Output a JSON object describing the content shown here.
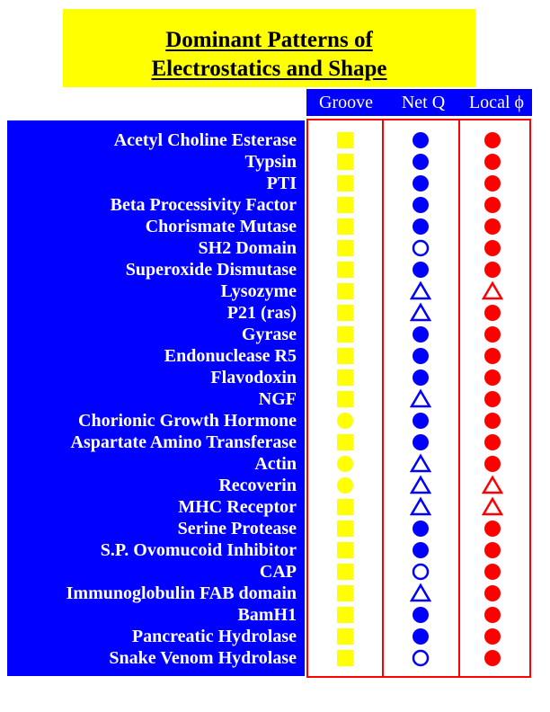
{
  "title": {
    "line1": "Dominant Patterns of",
    "line2": "Electrostatics and Shape"
  },
  "columns": [
    "Groove",
    "Net Q",
    "Local ϕ"
  ],
  "colors": {
    "blue": "#0000ff",
    "yellow": "#ffff00",
    "red": "#ff0000",
    "border_red": "#ff0000"
  },
  "rows": [
    {
      "name": "Acetyl Choline Esterase",
      "groove": "square",
      "netq": "filled-circle",
      "local": "filled-circle"
    },
    {
      "name": "Typsin",
      "groove": "square",
      "netq": "filled-circle",
      "local": "filled-circle"
    },
    {
      "name": "PTI",
      "groove": "square",
      "netq": "filled-circle",
      "local": "filled-circle"
    },
    {
      "name": "Beta Processivity Factor",
      "groove": "square",
      "netq": "filled-circle",
      "local": "filled-circle"
    },
    {
      "name": "Chorismate Mutase",
      "groove": "square",
      "netq": "filled-circle",
      "local": "filled-circle"
    },
    {
      "name": "SH2 Domain",
      "groove": "square",
      "netq": "open-circle",
      "local": "filled-circle"
    },
    {
      "name": "Superoxide Dismutase",
      "groove": "square",
      "netq": "filled-circle",
      "local": "filled-circle"
    },
    {
      "name": "Lysozyme",
      "groove": "square",
      "netq": "open-triangle",
      "local": "open-triangle"
    },
    {
      "name": "P21 (ras)",
      "groove": "square",
      "netq": "open-triangle",
      "local": "filled-circle"
    },
    {
      "name": "Gyrase",
      "groove": "square",
      "netq": "filled-circle",
      "local": "filled-circle"
    },
    {
      "name": "Endonuclease R5",
      "groove": "square",
      "netq": "filled-circle",
      "local": "filled-circle"
    },
    {
      "name": "Flavodoxin",
      "groove": "square",
      "netq": "filled-circle",
      "local": "filled-circle"
    },
    {
      "name": "NGF",
      "groove": "square",
      "netq": "open-triangle",
      "local": "filled-circle"
    },
    {
      "name": "Chorionic Growth Hormone",
      "groove": "circle",
      "netq": "filled-circle",
      "local": "filled-circle"
    },
    {
      "name": "Aspartate Amino Transferase",
      "groove": "square",
      "netq": "filled-circle",
      "local": "filled-circle"
    },
    {
      "name": "Actin",
      "groove": "circle",
      "netq": "open-triangle",
      "local": "filled-circle"
    },
    {
      "name": "Recoverin",
      "groove": "circle",
      "netq": "open-triangle",
      "local": "open-triangle"
    },
    {
      "name": "MHC Receptor",
      "groove": "square",
      "netq": "open-triangle",
      "local": "open-triangle"
    },
    {
      "name": "Serine Protease",
      "groove": "square",
      "netq": "filled-circle",
      "local": "filled-circle"
    },
    {
      "name": "S.P. Ovomucoid Inhibitor",
      "groove": "square",
      "netq": "filled-circle",
      "local": "filled-circle"
    },
    {
      "name": "CAP",
      "groove": "square",
      "netq": "open-circle",
      "local": "filled-circle"
    },
    {
      "name": "Immunoglobulin FAB domain",
      "groove": "square",
      "netq": "open-triangle",
      "local": "filled-circle"
    },
    {
      "name": "BamH1",
      "groove": "square",
      "netq": "filled-circle",
      "local": "filled-circle"
    },
    {
      "name": "Pancreatic Hydrolase",
      "groove": "square",
      "netq": "filled-circle",
      "local": "filled-circle"
    },
    {
      "name": "Snake Venom Hydrolase",
      "groove": "square",
      "netq": "open-circle",
      "local": "filled-circle"
    }
  ]
}
